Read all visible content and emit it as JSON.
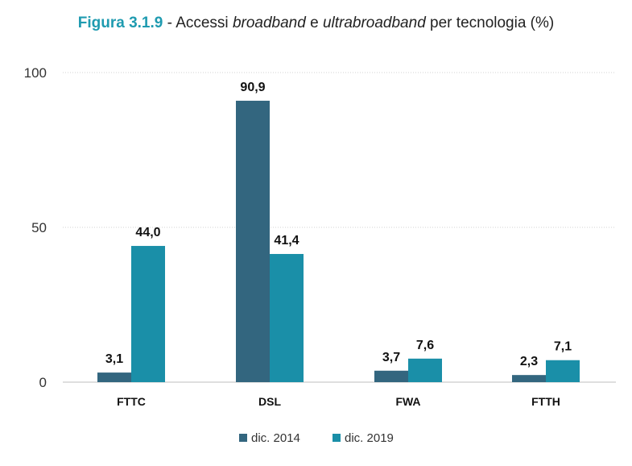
{
  "header": {
    "figure_label": "Figura 3.1.9",
    "separator": " - Accessi ",
    "word1": "broadband",
    "mid": " e ",
    "word2": "ultrabroadband",
    "tail": " per tecnologia (%)"
  },
  "chart_data": {
    "type": "bar",
    "title": "Figura 3.1.9 - Accessi broadband e ultrabroadband per tecnologia (%)",
    "categories": [
      "FTTC",
      "DSL",
      "FWA",
      "FTTH"
    ],
    "series": [
      {
        "name": "dic. 2014",
        "color": "#33667f",
        "values": [
          3.1,
          90.9,
          3.7,
          2.3
        ],
        "labels": [
          "3,1",
          "90,9",
          "3,7",
          "2,3"
        ]
      },
      {
        "name": "dic. 2019",
        "color": "#1a8fa8",
        "values": [
          44.0,
          41.4,
          7.6,
          7.1
        ],
        "labels": [
          "44,0",
          "41,4",
          "7,6",
          "7,1"
        ]
      }
    ],
    "yticks": [
      0,
      50,
      100
    ],
    "ylim": [
      0,
      100
    ],
    "grid": true,
    "legend": "bottom",
    "xlabel": "",
    "ylabel": ""
  }
}
